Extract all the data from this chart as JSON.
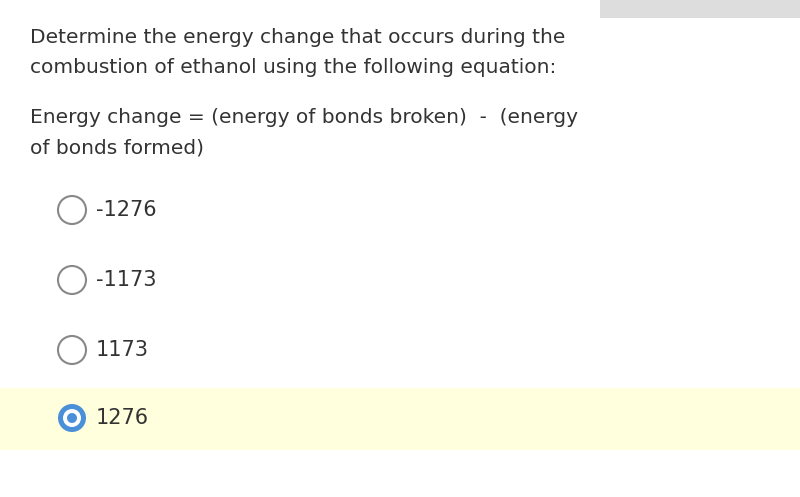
{
  "background_color": "#ffffff",
  "question_line1": "Determine the energy change that occurs during the",
  "question_line2": "combustion of ethanol using the following equation:",
  "equation_line1": "Energy change = (energy of bonds broken)  -  (energy",
  "equation_line2": "of bonds formed)",
  "options": [
    "-1276",
    "-1173",
    "1173",
    "1276"
  ],
  "selected_index": 3,
  "selected_bg": "#ffffdd",
  "radio_unselected_color": "#888888",
  "radio_selected_outer": "#4a90d9",
  "radio_selected_inner": "#4a90d9",
  "text_color": "#333333",
  "question_fontsize": 14.5,
  "equation_fontsize": 14.5,
  "option_fontsize": 15,
  "top_right_color": "#dddddd"
}
